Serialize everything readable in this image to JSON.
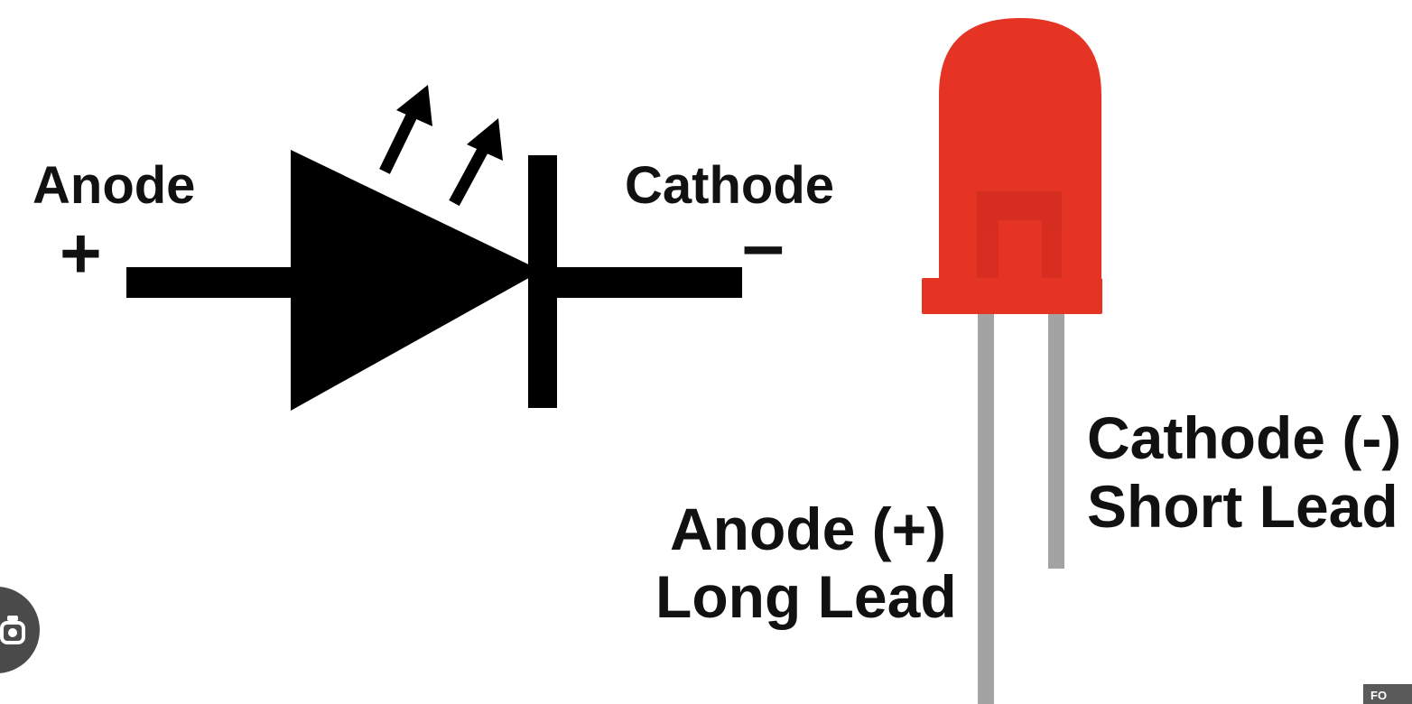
{
  "symbol": {
    "anode_label": "Anode",
    "anode_sign": "+",
    "cathode_label": "Cathode",
    "cathode_sign": "–"
  },
  "led": {
    "anode_line1": "Anode (+)",
    "anode_line2": "Long Lead",
    "cathode_line1": "Cathode (-)",
    "cathode_line2": "Short Lead",
    "body_color": "#e53424",
    "lead_color": "#a3a3a3"
  },
  "overlay": {
    "lens_icon": "lens-icon",
    "corner_badge": "FO"
  }
}
